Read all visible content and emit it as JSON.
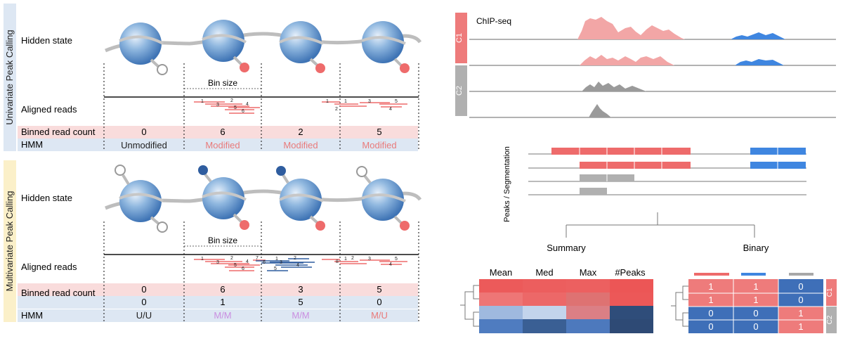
{
  "left": {
    "univariate": {
      "side_label": "Univariate Peak Calling",
      "hidden_state_label": "Hidden state",
      "bin_size_label": "Bin size",
      "aligned_reads_label": "Aligned reads",
      "binned_label": "Binned read count",
      "hmm_label": "HMM",
      "counts": [
        "0",
        "6",
        "2",
        "5"
      ],
      "hmm": [
        "Unmodified",
        "Modified",
        "Modified",
        "Modified"
      ],
      "read_numbers": [
        "1",
        "2",
        "3",
        "4",
        "5",
        "6",
        "1",
        "2",
        "1",
        "3",
        "5",
        "4"
      ]
    },
    "multivariate": {
      "side_label": "Multivariate Peak Calling",
      "hidden_state_label": "Hidden state",
      "bin_size_label": "Bin size",
      "aligned_reads_label": "Aligned reads",
      "binned_label": "Binned read count",
      "hmm_label": "HMM",
      "counts_row1": [
        "0",
        "6",
        "3",
        "5"
      ],
      "counts_row2": [
        "0",
        "1",
        "5",
        "0"
      ],
      "hmm": [
        "U/U",
        "M/M",
        "M/M",
        "M/U"
      ],
      "read_numbers_red": [
        "1",
        "2",
        "3",
        "4",
        "5",
        "6",
        "7",
        "1",
        "2",
        "3",
        "5",
        "4"
      ],
      "read_numbers_blue": [
        "1",
        "2",
        "3",
        "4",
        "5",
        "6",
        "8"
      ]
    }
  },
  "right": {
    "chip_label": "ChIP-seq",
    "group1": "C1",
    "group2": "C2",
    "peaks_label": "Peaks / Segmentation",
    "summary_label": "Summary",
    "binary_label": "Binary",
    "heatmap_cols": [
      "Mean",
      "Med",
      "Max",
      "#Peaks"
    ],
    "binary_values": [
      [
        "1",
        "1",
        "0"
      ],
      [
        "1",
        "1",
        "0"
      ],
      [
        "0",
        "0",
        "1"
      ],
      [
        "0",
        "0",
        "1"
      ]
    ],
    "binary_group1": "C1",
    "binary_group2": "C2"
  },
  "colors": {
    "red": "#ee6b6b",
    "blue": "#3f86e0",
    "gray": "#a8a8a8",
    "pink_row": "#f9dcdc",
    "blue_row": "#dde7f3",
    "magenta_text": "#c98ee0",
    "modified_text": "#e97a7a"
  }
}
